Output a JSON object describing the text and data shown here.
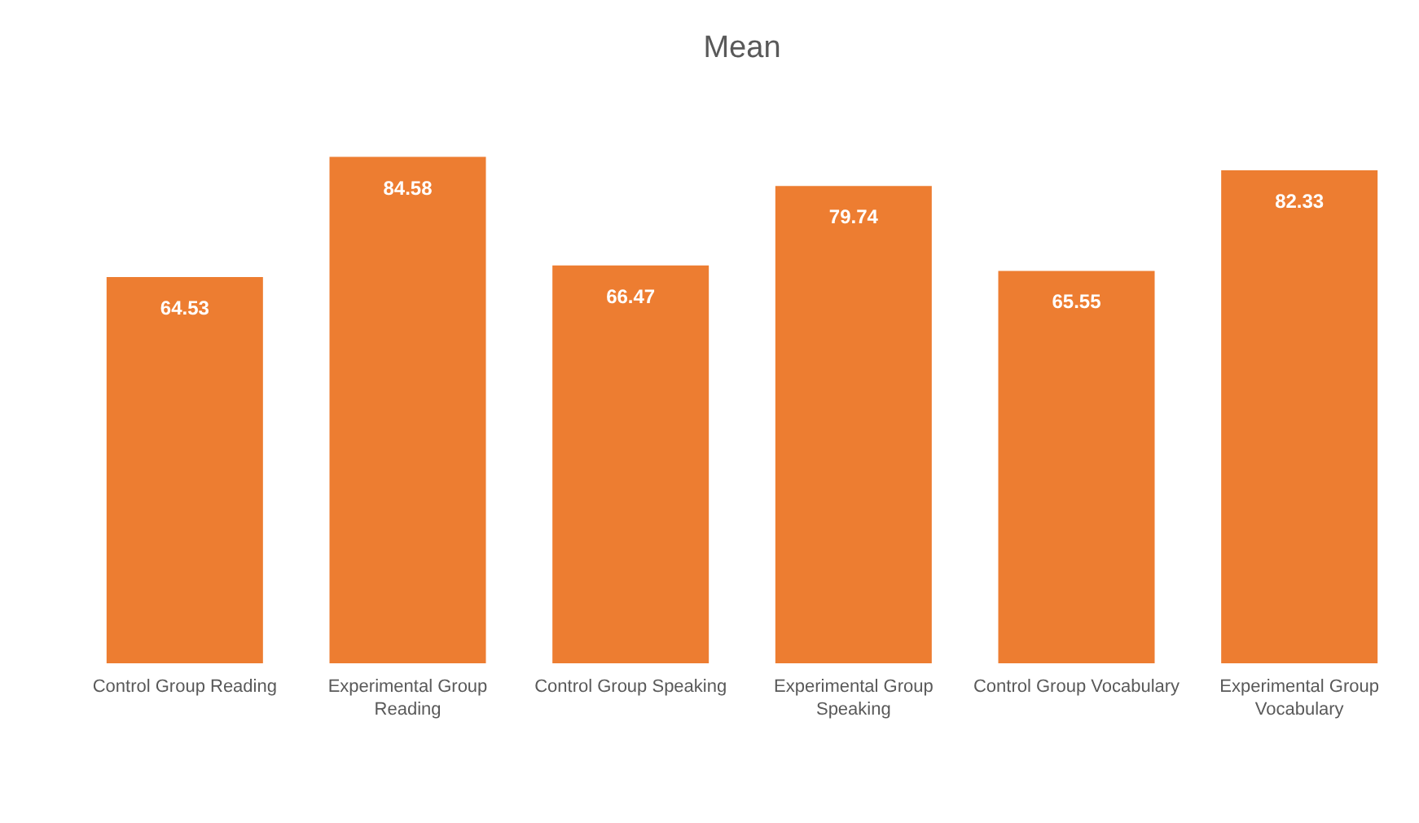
{
  "chart_data": {
    "type": "bar",
    "title": "Mean",
    "categories": [
      "Control Group Reading",
      "Experimental Group Reading",
      "Control Group Speaking",
      "Experimental Group Speaking",
      "Control Group Vocabulary",
      "Experimental Group Vocabulary"
    ],
    "values": [
      64.53,
      84.58,
      66.47,
      79.74,
      65.55,
      82.33
    ],
    "color": "#ed7d31",
    "data_labels": true
  }
}
